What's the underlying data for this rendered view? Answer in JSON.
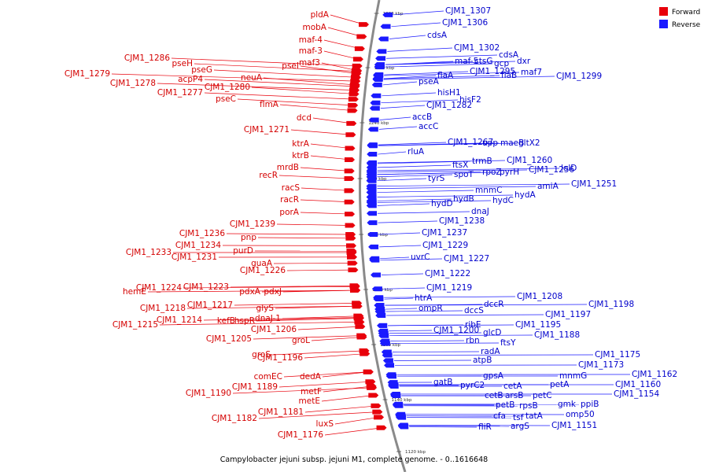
{
  "caption": "Campylobacter jejuni subsp. jejuni M1, complete genome. - 0..1616648",
  "legend": {
    "forward_label": "Forward",
    "reverse_label": "Reverse",
    "forward_color": "#e8000b",
    "reverse_color": "#1a1aff"
  },
  "scale_ticks": [
    "1280 kbp",
    "1260 kbp",
    "1240 kbp",
    "1220 kbp",
    "1200 kbp",
    "1180 kbp",
    "1160 kbp",
    "1140 kbp",
    "1120 kbp"
  ],
  "forward_labels": [
    "pldA",
    "mobA",
    "maf-4",
    "maf-3",
    "CJM1_1286",
    "pseH",
    "pseI",
    "maf3",
    "pseG",
    "CJM1_1279",
    "acpP4",
    "neuA",
    "CJM1_1278",
    "CJM1_1280",
    "CJM1_1277",
    "pseC",
    "flmA",
    "dcd",
    "CJM1_1271",
    "ktrA",
    "ktrB",
    "mrdB",
    "recR",
    "racS",
    "racR",
    "porA",
    "CJM1_1239",
    "CJM1_1236",
    "pnp",
    "CJM1_1234",
    "purD",
    "CJM1_1233",
    "CJM1_1231",
    "guaA",
    "CJM1_1226",
    "hemE",
    "CJM1_1224",
    "CJM1_1223",
    "pdxA",
    "pdxJ",
    "CJM1_1218",
    "CJM1_1217",
    "glyS",
    "CJM1_1215",
    "CJM1_1214",
    "kefB",
    "hspR",
    "dnaJ-1",
    "CJM1_1206",
    "CJM1_1205",
    "groL",
    "groS",
    "CJM1_1196",
    "comEC",
    "dedA",
    "CJM1_1189",
    "CJM1_1190",
    "metF",
    "metE",
    "CJM1_1181",
    "CJM1_1182",
    "luxS",
    "CJM1_1176"
  ],
  "reverse_labels": [
    "CJM1_1307",
    "CJM1_1306",
    "cdsA",
    "CJM1_1302",
    "cdsA",
    "maf-5",
    "ctsG",
    "gcp",
    "dxr",
    "flaA",
    "CJM1_1295",
    "flaB",
    "maf7",
    "CJM1_1299",
    "pseA",
    "hisH1",
    "hisF2",
    "CJM1_1282",
    "accB",
    "accC",
    "CJM1_1267",
    "upp",
    "maeB",
    "gltX2",
    "rluA",
    "trmB",
    "CJM1_1260",
    "ftsX",
    "lolD",
    "spoT",
    "rpoZ",
    "pyrH",
    "CJM1_1256",
    "tyrS",
    "amiA",
    "CJM1_1251",
    "mnmC",
    "hydA",
    "hydB",
    "hydC",
    "hydD",
    "dnaJ",
    "CJM1_1238",
    "CJM1_1237",
    "CJM1_1229",
    "uvrC",
    "CJM1_1227",
    "CJM1_1222",
    "CJM1_1219",
    "htrA",
    "CJM1_1208",
    "ompR",
    "dccR",
    "dccS",
    "CJM1_1198",
    "CJM1_1197",
    "ribE",
    "CJM1_1195",
    "CJM1_1200",
    "glcD",
    "CJM1_1188",
    "rbn",
    "ftsY",
    "radA",
    "atpB",
    "CJM1_1175",
    "CJM1_1173",
    "gpsA",
    "mnmG",
    "CJM1_1162",
    "gatB",
    "pyrC2",
    "cetA",
    "petA",
    "CJM1_1160",
    "cetB",
    "arsB",
    "petC",
    "CJM1_1154",
    "petB",
    "rpsB",
    "gmk",
    "ppiB",
    "cfa",
    "tsf",
    "tatA",
    "omp50",
    "fliR",
    "argS",
    "CJM1_1151"
  ]
}
